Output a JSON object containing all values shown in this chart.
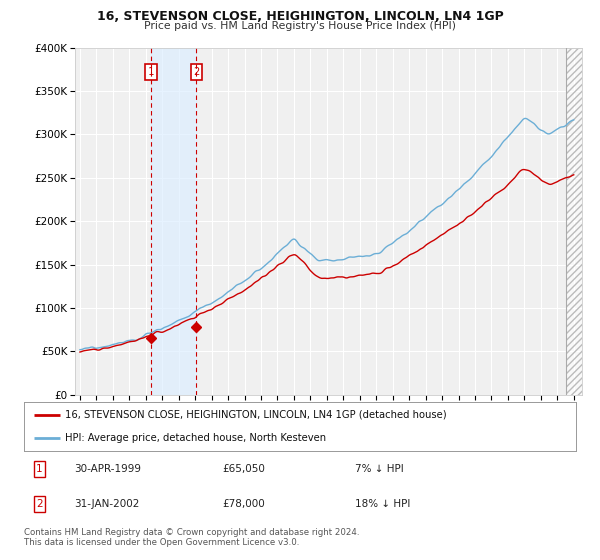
{
  "title": "16, STEVENSON CLOSE, HEIGHINGTON, LINCOLN, LN4 1GP",
  "subtitle": "Price paid vs. HM Land Registry's House Price Index (HPI)",
  "legend_line1": "16, STEVENSON CLOSE, HEIGHINGTON, LINCOLN, LN4 1GP (detached house)",
  "legend_line2": "HPI: Average price, detached house, North Kesteven",
  "table_row1": [
    "1",
    "30-APR-1999",
    "£65,050",
    "7% ↓ HPI"
  ],
  "table_row2": [
    "2",
    "31-JAN-2002",
    "£78,000",
    "18% ↓ HPI"
  ],
  "footnote": "Contains HM Land Registry data © Crown copyright and database right 2024.\nThis data is licensed under the Open Government Licence v3.0.",
  "hpi_color": "#6baed6",
  "price_color": "#cc0000",
  "sale1_date_x": 1999.33,
  "sale2_date_x": 2002.08,
  "sale1_price": 65050,
  "sale2_price": 78000,
  "ylim": [
    0,
    400000
  ],
  "xlim": [
    1994.7,
    2025.5
  ],
  "hatch_start": 2024.5,
  "background_color": "#ffffff",
  "plot_bg_color": "#f0f0f0",
  "grid_color": "#ffffff"
}
